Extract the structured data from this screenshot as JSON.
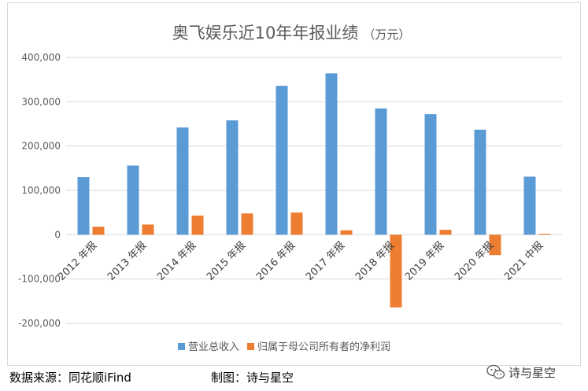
{
  "chart_data": {
    "type": "bar",
    "title": "奥飞娱乐近10年年报业绩",
    "subtitle": "（万元）",
    "categories": [
      "2012 年报",
      "2013 年报",
      "2014 年报",
      "2015 年报",
      "2016 年报",
      "2017 年报",
      "2018 年报",
      "2019 年报",
      "2020 年报",
      "2021 中报"
    ],
    "series": [
      {
        "name": "营业总收入",
        "color": "#5b9bd5",
        "values": [
          130000,
          156000,
          242000,
          258000,
          336000,
          364000,
          285000,
          272000,
          237000,
          131000
        ]
      },
      {
        "name": "归属于母公司所有者的净利润",
        "color": "#ed7d31",
        "values": [
          18000,
          23000,
          43000,
          48000,
          50000,
          10000,
          -164000,
          11000,
          -46000,
          2000
        ]
      }
    ],
    "ylim": [
      -200000,
      400000
    ],
    "yticks": [
      -200000,
      -100000,
      0,
      100000,
      200000,
      300000,
      400000
    ],
    "ytick_labels": [
      "-200,000",
      "-100,000",
      "0",
      "100,000",
      "200,000",
      "300,000",
      "400,000"
    ],
    "grid": true,
    "legend_position": "bottom"
  },
  "footer": {
    "source": "数据来源：同花顺iFind",
    "maker": "制图：诗与星空"
  },
  "watermark": {
    "icon": "wechat-icon",
    "text": "诗与星空"
  }
}
